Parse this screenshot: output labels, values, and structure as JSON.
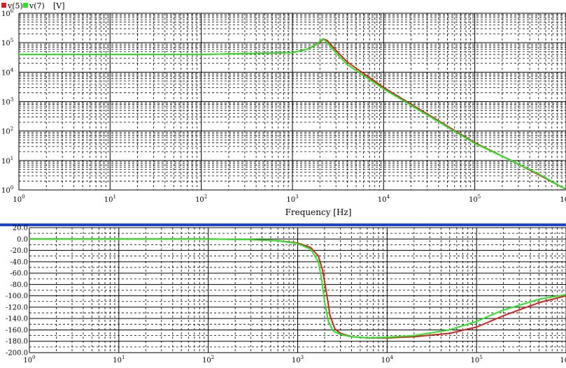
{
  "legend": {
    "items": [
      {
        "label": "v(5)",
        "color": "#d81e1e"
      },
      {
        "label": "v(7)",
        "color": "#22e81e"
      }
    ],
    "unit": "[V]"
  },
  "colors": {
    "divider": "#1e46c8",
    "grid": "#000000",
    "series_v5": "#d81e1e",
    "series_v7": "#22e81e"
  },
  "chart_data": [
    {
      "type": "line",
      "name": "magnitude",
      "xscale": "log",
      "yscale": "log",
      "xlabel": "Frequency [Hz]",
      "ylabel": "",
      "xlim": [
        1,
        1000000
      ],
      "ylim": [
        1,
        1000000
      ],
      "x_ticks": [
        {
          "base": "10",
          "exp": "0"
        },
        {
          "base": "10",
          "exp": "1"
        },
        {
          "base": "10",
          "exp": "2"
        },
        {
          "base": "10",
          "exp": "3"
        },
        {
          "base": "10",
          "exp": "4"
        },
        {
          "base": "10",
          "exp": "5"
        },
        {
          "base": "10",
          "exp": "6"
        }
      ],
      "y_ticks": [
        {
          "base": "10",
          "exp": "0"
        },
        {
          "base": "10",
          "exp": "1"
        },
        {
          "base": "10",
          "exp": "2"
        },
        {
          "base": "10",
          "exp": "3"
        },
        {
          "base": "10",
          "exp": "4"
        },
        {
          "base": "10",
          "exp": "5"
        },
        {
          "base": "10",
          "exp": "6"
        }
      ],
      "grid": true,
      "series": [
        {
          "name": "v(5)",
          "color": "#d81e1e",
          "x": [
            1,
            10,
            100,
            1000,
            1500,
            1900,
            2200,
            2400,
            3000,
            4000,
            10000,
            100000,
            250000,
            500000,
            1000000
          ],
          "y": [
            40000,
            40000,
            40000,
            46000,
            62000,
            95000,
            132000,
            120000,
            55000,
            22000,
            3000,
            40,
            10,
            3.3,
            1.05
          ]
        },
        {
          "name": "v(7)",
          "color": "#22e81e",
          "x": [
            1,
            10,
            100,
            1000,
            1500,
            1900,
            2150,
            2350,
            3000,
            4000,
            10000,
            100000,
            250000,
            500000,
            1000000
          ],
          "y": [
            40000,
            40000,
            40000,
            46000,
            62000,
            98000,
            135000,
            110000,
            45000,
            18000,
            2700,
            38,
            10,
            3.5,
            1.05
          ]
        }
      ]
    },
    {
      "type": "line",
      "name": "phase",
      "xscale": "log",
      "yscale": "linear",
      "xlabel": "",
      "ylabel": "",
      "xlim": [
        1,
        1000000
      ],
      "ylim": [
        -200,
        20
      ],
      "x_ticks": [
        {
          "base": "10",
          "exp": "0"
        },
        {
          "base": "10",
          "exp": "1"
        },
        {
          "base": "10",
          "exp": "2"
        },
        {
          "base": "10",
          "exp": "3"
        },
        {
          "base": "10",
          "exp": "4"
        },
        {
          "base": "10",
          "exp": "5"
        },
        {
          "base": "10",
          "exp": "6"
        }
      ],
      "y_ticks": [
        "20.0",
        "0.0",
        "-20.0",
        "-40.0",
        "-60.0",
        "-80.0",
        "-100.0",
        "-120.0",
        "-140.0",
        "-160.0",
        "-180.0",
        "-200.0"
      ],
      "grid": true,
      "series": [
        {
          "name": "v(5)",
          "color": "#d81e1e",
          "x": [
            1,
            10,
            100,
            300,
            600,
            1000,
            1400,
            1700,
            1900,
            2100,
            2300,
            2600,
            3000,
            4000,
            6000,
            10000,
            20000,
            50000,
            100000,
            200000,
            500000,
            1000000,
            2000000
          ],
          "y": [
            0,
            0,
            0,
            -1,
            -3,
            -7,
            -15,
            -30,
            -55,
            -95,
            -135,
            -158,
            -166,
            -172,
            -174,
            -174,
            -172,
            -166,
            -155,
            -135,
            -112,
            -100,
            -96
          ]
        },
        {
          "name": "v(7)",
          "color": "#22e81e",
          "x": [
            1,
            10,
            100,
            300,
            600,
            1000,
            1400,
            1700,
            1850,
            2000,
            2200,
            2500,
            3000,
            4000,
            6000,
            10000,
            20000,
            50000,
            100000,
            200000,
            500000,
            1000000,
            2000000
          ],
          "y": [
            0,
            0,
            0,
            -1,
            -3,
            -8,
            -18,
            -40,
            -70,
            -110,
            -145,
            -162,
            -168,
            -172,
            -174,
            -173,
            -170,
            -160,
            -145,
            -125,
            -106,
            -98,
            -94
          ]
        }
      ]
    }
  ]
}
